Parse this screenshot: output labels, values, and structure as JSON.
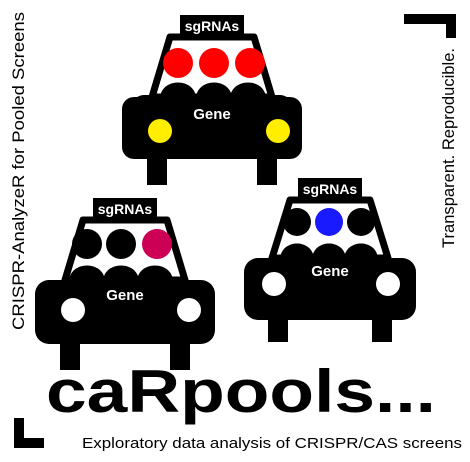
{
  "side_left": "CRISPR-AnalyzeR for Pooled Screens",
  "side_right": "Transparent. Reproducible.",
  "brand": "caRpools...",
  "tagline": "Exploratory data analysis of CRISPR/CAS screens",
  "cars": [
    {
      "roof_label": "sgRNAs",
      "body_label": "Gene",
      "highlight_colors": [
        "#ff0000",
        "#ff0000",
        "#ff0000"
      ],
      "headlight_color": "#ffee00"
    },
    {
      "roof_label": "sgRNAs",
      "body_label": "Gene",
      "highlight_colors": [
        "#000000",
        "#000000",
        "#cc0055"
      ],
      "headlight_color": "#ffffff"
    },
    {
      "roof_label": "sgRNAs",
      "body_label": "Gene",
      "highlight_colors": [
        "#000000",
        "#1a1aff",
        "#000000"
      ],
      "headlight_color": "#ffffff"
    }
  ],
  "colors": {
    "ink": "#000000",
    "paper": "#ffffff"
  }
}
